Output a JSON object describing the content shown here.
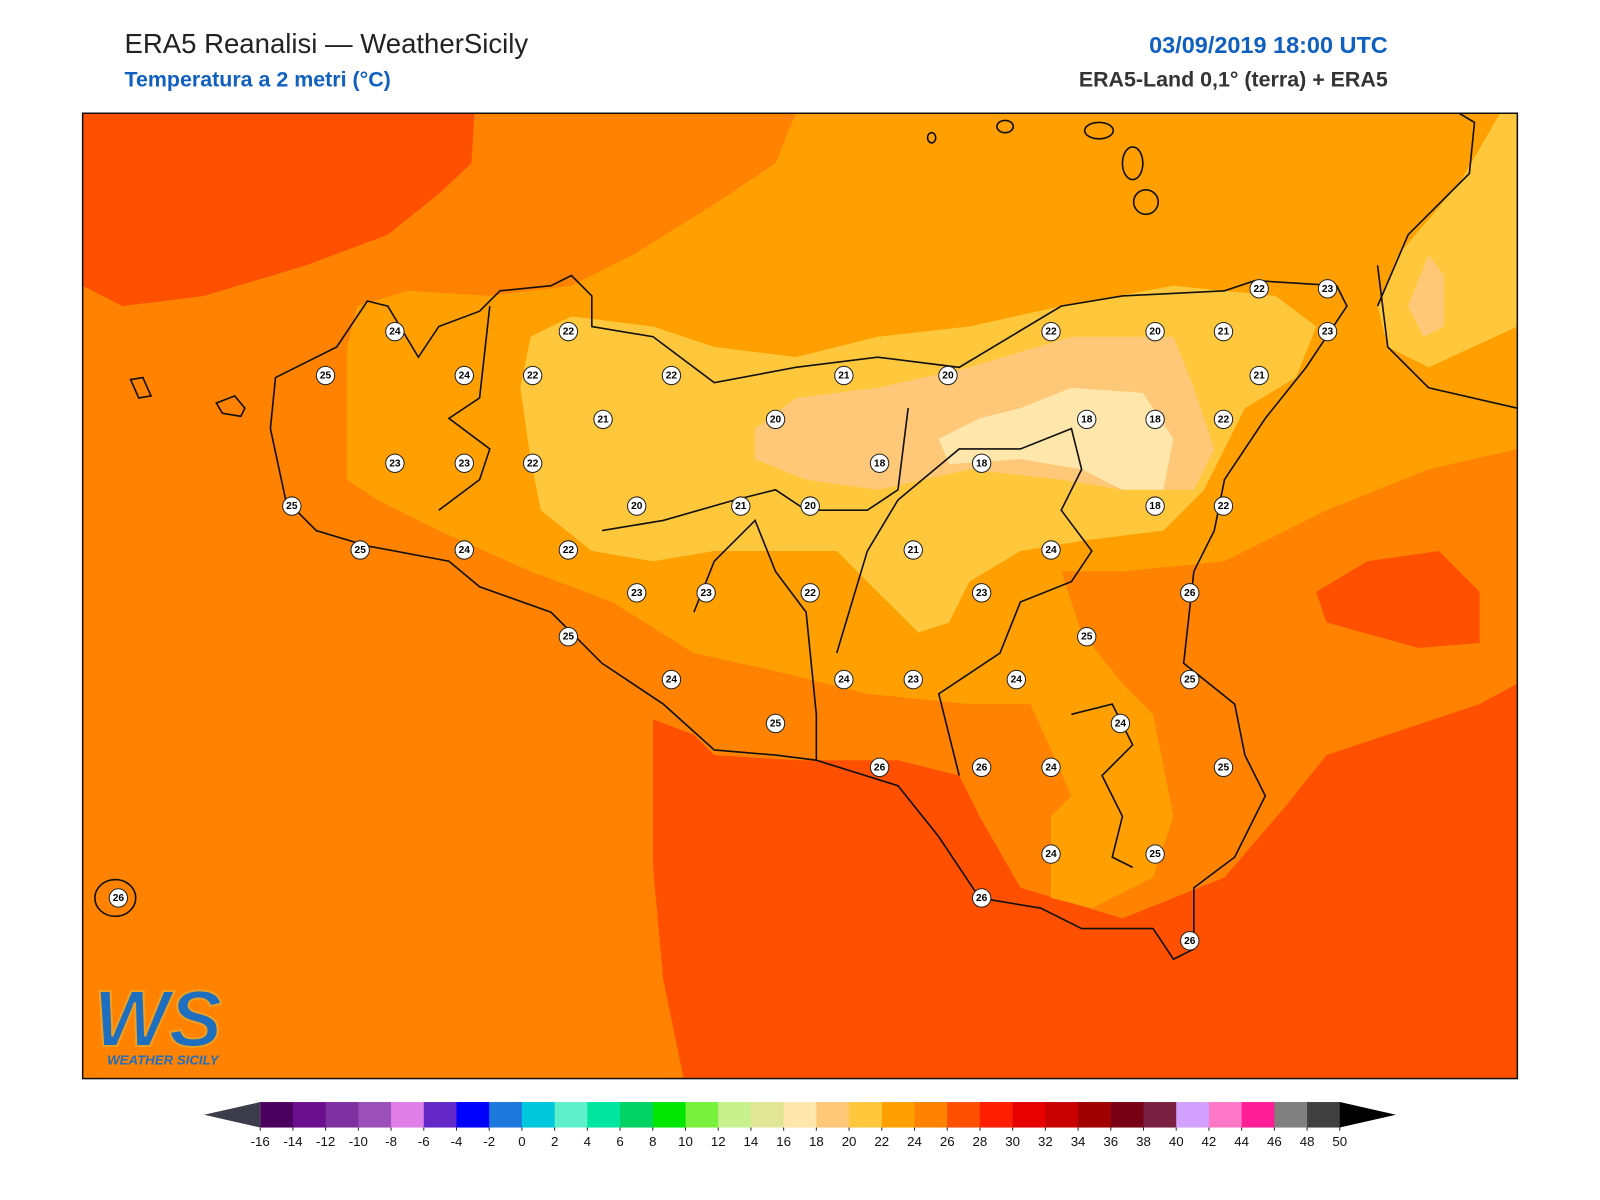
{
  "header": {
    "title": "ERA5 Reanalisi — WeatherSicily",
    "subtitle": "Temperatura a 2 metri (°C)",
    "datetime": "03/09/2019 18:00 UTC",
    "source": "ERA5-Land 0,1° (terra) + ERA5"
  },
  "map": {
    "stations": [
      24,
      22,
      25,
      24,
      22,
      22,
      21,
      20,
      21,
      20,
      22,
      20,
      21,
      22,
      23,
      23,
      21,
      22,
      18,
      18,
      23,
      23,
      22,
      18,
      18,
      25,
      20,
      21,
      20,
      18,
      22,
      25,
      24,
      22,
      21,
      24,
      23,
      23,
      22,
      23,
      26,
      25,
      25,
      24,
      24,
      23,
      24,
      25,
      24,
      25,
      25,
      26,
      26,
      24,
      24,
      25,
      26,
      26,
      26
    ]
  },
  "colorbar": {
    "ticks": [
      -16,
      -14,
      -12,
      -10,
      -8,
      -6,
      -4,
      -2,
      0,
      2,
      4,
      6,
      8,
      10,
      12,
      14,
      16,
      18,
      20,
      22,
      24,
      26,
      28,
      30,
      32,
      34,
      36,
      38,
      40,
      42,
      44,
      46,
      48,
      50
    ],
    "colors": [
      "#4b0060",
      "#6b0f8f",
      "#7e2fa0",
      "#9b4fb8",
      "#e07ee8",
      "#6428c8",
      "#0000ff",
      "#1e78dc",
      "#00c8dc",
      "#5ef0c8",
      "#00e6a0",
      "#00d264",
      "#00e600",
      "#78f03c",
      "#c8f08c",
      "#e1e696",
      "#ffe6aa",
      "#ffc878",
      "#ffc83c",
      "#ffa000",
      "#ff8200",
      "#ff5000",
      "#ff1e00",
      "#e60000",
      "#c80000",
      "#a00000",
      "#780014",
      "#7a2040",
      "#d2a0ff",
      "#ff78c8",
      "#ff1e96",
      "#808080",
      "#404040"
    ],
    "under_color": "#3c3c4b",
    "over_color": "#000000"
  },
  "logo": {
    "mark": "WS",
    "caption": "WEATHER SICILY"
  }
}
